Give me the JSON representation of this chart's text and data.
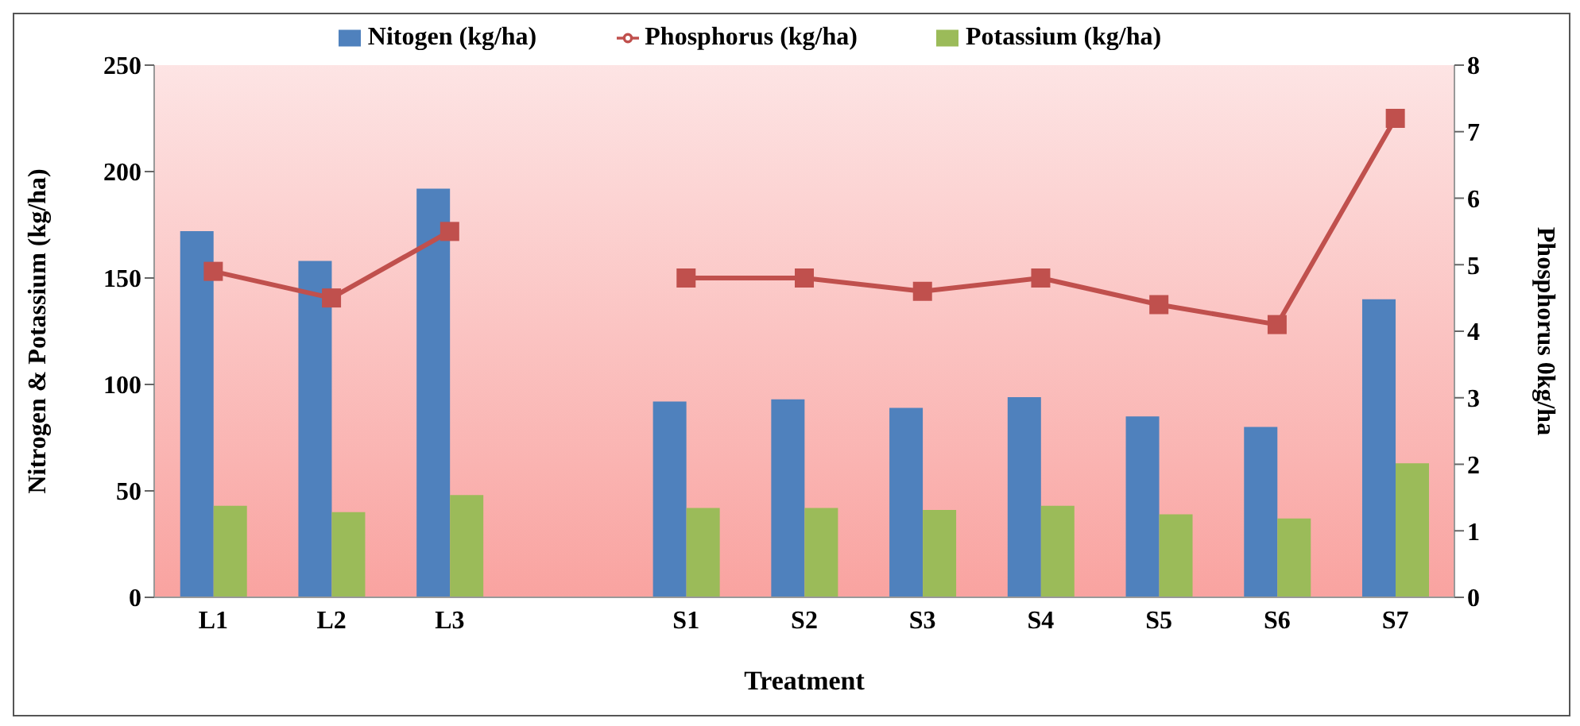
{
  "chart_data": {
    "type": "bar",
    "xlabel": "Treatment",
    "ylabel": "Nitrogen & Potassium (kg/ha)",
    "y2label": "Phosphorus 0kg/ha",
    "categories": [
      "L1",
      "L2",
      "L3",
      null,
      "S1",
      "S2",
      "S3",
      "S4",
      "S5",
      "S6",
      "S7"
    ],
    "series": [
      {
        "name": "Nitogen (kg/ha)",
        "color": "#4f81bd",
        "values": [
          172,
          158,
          192,
          null,
          92,
          93,
          89,
          94,
          85,
          80,
          140
        ]
      },
      {
        "name": "Potassium (kg/ha)",
        "color": "#9bbb59",
        "values": [
          43,
          40,
          48,
          null,
          42,
          42,
          41,
          43,
          39,
          37,
          63
        ]
      },
      {
        "name": "Phosphorus (kg/ha)",
        "type": "line",
        "axis": "y2",
        "color": "#c0504d",
        "marker": "square",
        "values": [
          4.9,
          4.5,
          5.5,
          null,
          4.8,
          4.8,
          4.6,
          4.8,
          4.4,
          4.1,
          7.2
        ]
      }
    ],
    "ylim": [
      0,
      250
    ],
    "yticks": [
      0,
      50,
      100,
      150,
      200,
      250
    ],
    "y2lim": [
      0,
      8
    ],
    "y2ticks": [
      0,
      1,
      2,
      3,
      4,
      5,
      6,
      7,
      8
    ],
    "grid": false,
    "legend": "top"
  }
}
